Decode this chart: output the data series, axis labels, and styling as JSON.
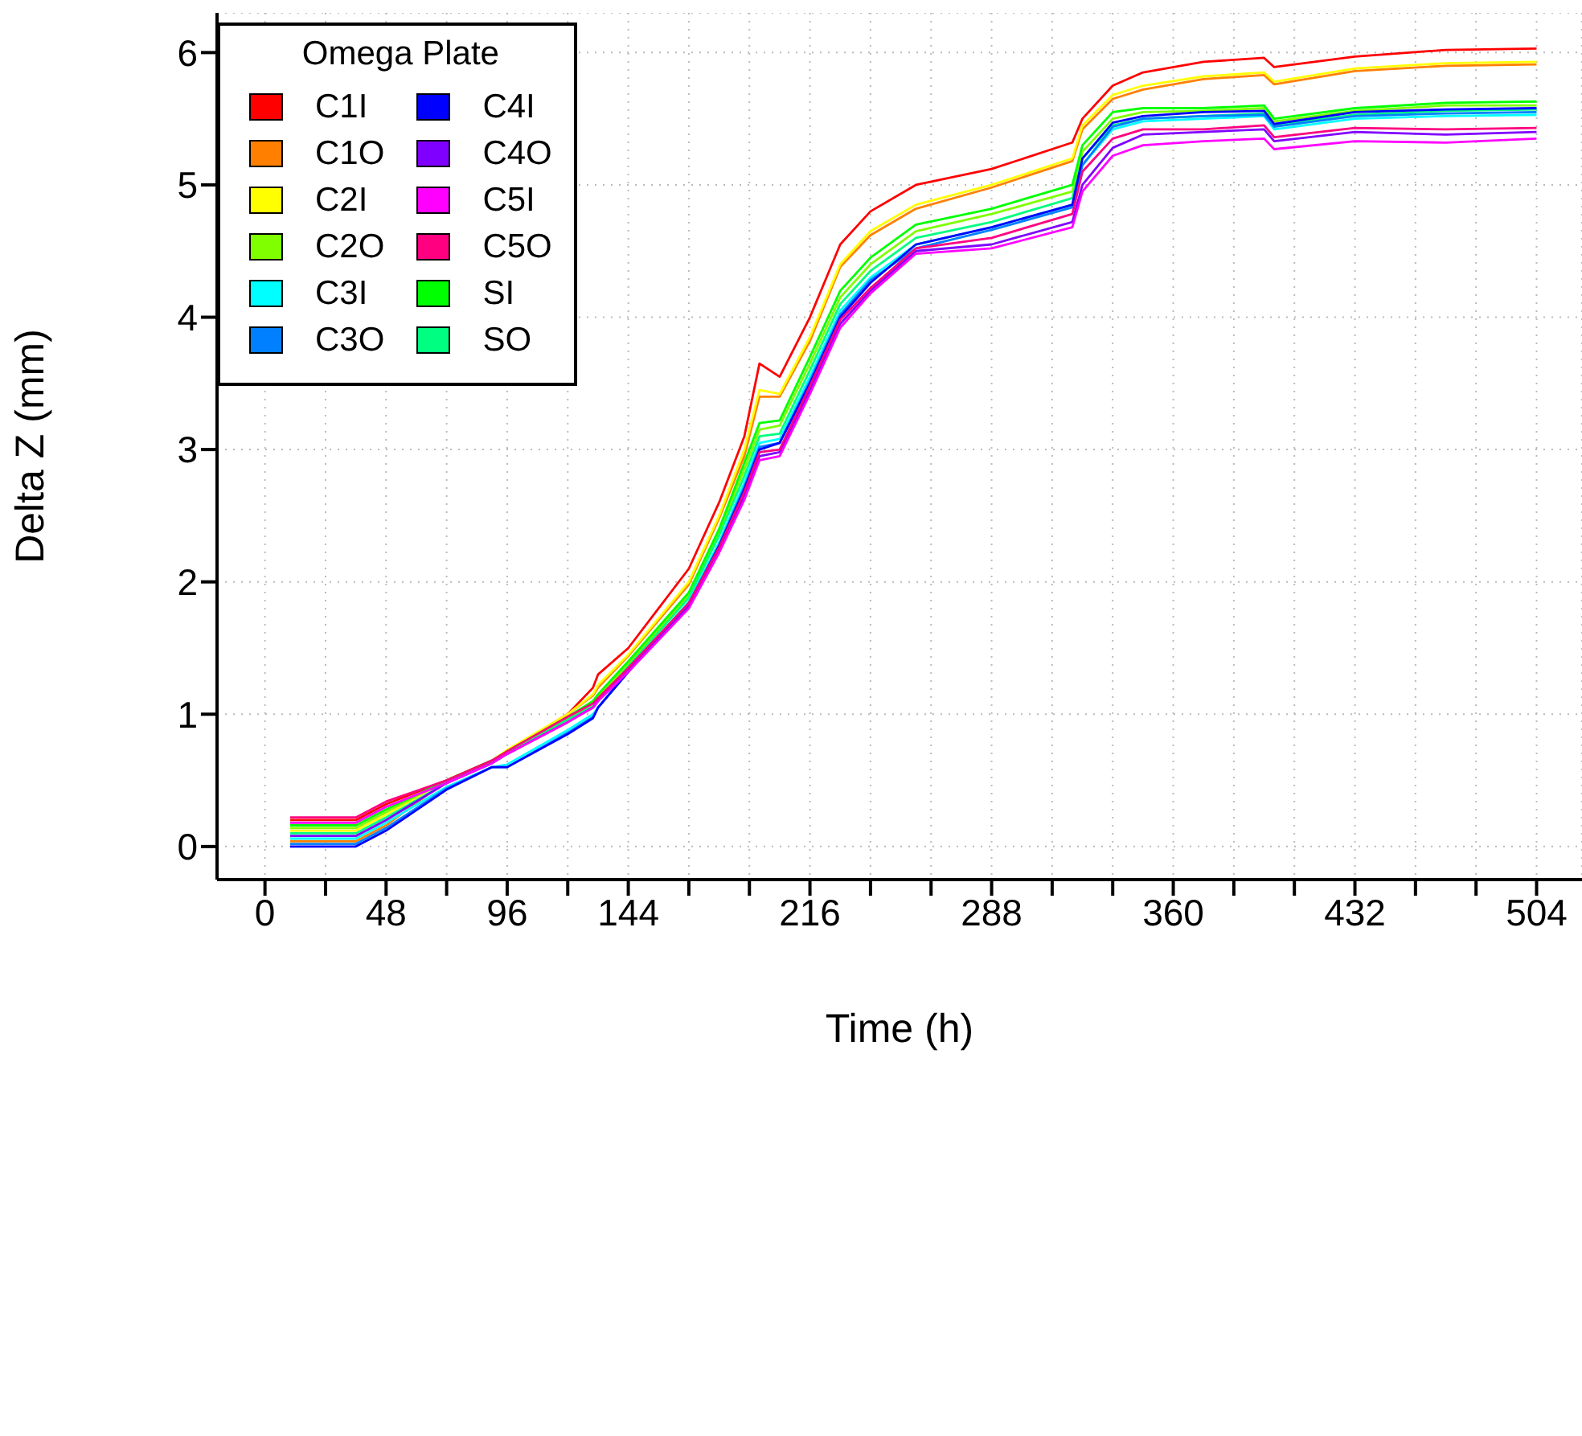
{
  "chart_data": {
    "type": "line",
    "xlabel": "Time (h)",
    "ylabel": "Delta Z (mm)",
    "legend_title": "Omega Plate",
    "legend": "top left",
    "grid": true,
    "marker": "none",
    "line_style": "solid",
    "xlim": [
      -19,
      522
    ],
    "ylim": [
      -0.25,
      6.3
    ],
    "xticks": [
      0,
      {
        "value": 24,
        "label": null
      },
      48,
      {
        "value": 72,
        "label": null
      },
      96,
      {
        "value": 120,
        "label": null
      },
      144,
      {
        "value": 168,
        "label": null
      },
      {
        "value": 192,
        "label": null
      },
      216,
      {
        "value": 240,
        "label": null
      },
      {
        "value": 264,
        "label": null
      },
      288,
      {
        "value": 312,
        "label": null
      },
      {
        "value": 336,
        "label": null
      },
      360,
      {
        "value": 384,
        "label": null
      },
      {
        "value": 408,
        "label": null
      },
      432,
      {
        "value": 456,
        "label": null
      },
      {
        "value": 480,
        "label": null
      },
      504
    ],
    "yticks": [
      0,
      1,
      2,
      3,
      4,
      5,
      6
    ],
    "x": [
      10,
      12,
      24,
      36,
      48,
      72,
      90,
      96,
      120,
      130,
      132,
      144,
      168,
      180,
      190,
      196,
      204,
      216,
      228,
      240,
      258,
      288,
      320,
      324,
      336,
      348,
      372,
      396,
      400,
      432,
      468,
      504
    ],
    "series": [
      {
        "name": "C1I",
        "color": "#ff0000",
        "values": [
          0.2,
          0.2,
          0.2,
          0.2,
          0.32,
          0.5,
          0.65,
          0.72,
          1.0,
          1.2,
          1.3,
          1.5,
          2.1,
          2.6,
          3.1,
          3.65,
          3.55,
          4.0,
          4.55,
          4.8,
          5.0,
          5.12,
          5.32,
          5.5,
          5.75,
          5.85,
          5.93,
          5.96,
          5.89,
          5.97,
          6.02,
          6.03
        ]
      },
      {
        "name": "C1O",
        "color": "#ff8000",
        "values": [
          0.04,
          0.04,
          0.04,
          0.04,
          0.16,
          0.5,
          0.65,
          0.72,
          1.0,
          1.14,
          1.2,
          1.44,
          1.98,
          2.48,
          2.95,
          3.4,
          3.4,
          3.82,
          4.38,
          4.62,
          4.82,
          4.98,
          5.18,
          5.42,
          5.65,
          5.72,
          5.8,
          5.83,
          5.76,
          5.86,
          5.9,
          5.91
        ]
      },
      {
        "name": "C2I",
        "color": "#ffff00",
        "values": [
          0.12,
          0.12,
          0.12,
          0.12,
          0.24,
          0.5,
          0.65,
          0.73,
          1.0,
          1.15,
          1.22,
          1.45,
          2.0,
          2.5,
          3.0,
          3.45,
          3.42,
          3.85,
          4.4,
          4.65,
          4.85,
          5.0,
          5.2,
          5.45,
          5.68,
          5.75,
          5.82,
          5.85,
          5.78,
          5.88,
          5.92,
          5.93
        ]
      },
      {
        "name": "C2O",
        "color": "#80ff00",
        "values": [
          0.14,
          0.14,
          0.14,
          0.14,
          0.26,
          0.5,
          0.64,
          0.72,
          0.97,
          1.08,
          1.13,
          1.38,
          1.9,
          2.38,
          2.85,
          3.15,
          3.18,
          3.65,
          4.15,
          4.4,
          4.65,
          4.78,
          4.95,
          5.25,
          5.5,
          5.55,
          5.56,
          5.58,
          5.48,
          5.56,
          5.6,
          5.6
        ]
      },
      {
        "name": "SI",
        "color": "#00ff00",
        "values": [
          0.16,
          0.16,
          0.16,
          0.16,
          0.28,
          0.5,
          0.65,
          0.72,
          0.98,
          1.1,
          1.15,
          1.4,
          1.92,
          2.4,
          2.9,
          3.2,
          3.22,
          3.7,
          4.2,
          4.45,
          4.7,
          4.82,
          5.0,
          5.3,
          5.55,
          5.58,
          5.58,
          5.6,
          5.5,
          5.58,
          5.62,
          5.63
        ]
      },
      {
        "name": "SO",
        "color": "#00ff80",
        "values": [
          0.1,
          0.1,
          0.1,
          0.1,
          0.22,
          0.48,
          0.63,
          0.7,
          0.96,
          1.06,
          1.1,
          1.36,
          1.88,
          2.35,
          2.8,
          3.1,
          3.12,
          3.6,
          4.1,
          4.35,
          4.6,
          4.72,
          4.9,
          5.2,
          5.45,
          5.5,
          5.52,
          5.54,
          5.45,
          5.53,
          5.56,
          5.57
        ]
      },
      {
        "name": "C3I",
        "color": "#00ffff",
        "values": [
          0.06,
          0.06,
          0.06,
          0.06,
          0.18,
          0.45,
          0.6,
          0.62,
          0.88,
          1.0,
          1.05,
          1.33,
          1.85,
          2.3,
          2.75,
          3.05,
          3.08,
          3.55,
          4.05,
          4.3,
          4.55,
          4.68,
          4.85,
          5.15,
          5.42,
          5.48,
          5.5,
          5.52,
          5.42,
          5.5,
          5.52,
          5.53
        ]
      },
      {
        "name": "C3O",
        "color": "#0080ff",
        "values": [
          0.02,
          0.02,
          0.02,
          0.02,
          0.14,
          0.44,
          0.6,
          0.6,
          0.86,
          0.98,
          1.05,
          1.32,
          1.84,
          2.28,
          2.72,
          3.02,
          3.05,
          3.52,
          4.02,
          4.28,
          4.52,
          4.66,
          4.83,
          5.15,
          5.44,
          5.5,
          5.52,
          5.53,
          5.44,
          5.52,
          5.54,
          5.55
        ]
      },
      {
        "name": "C4I",
        "color": "#0000ff",
        "values": [
          0,
          0,
          0,
          0,
          0.12,
          0.43,
          0.6,
          0.6,
          0.85,
          0.97,
          1.05,
          1.32,
          1.83,
          2.27,
          2.7,
          3.0,
          3.05,
          3.5,
          4.0,
          4.26,
          4.55,
          4.68,
          4.85,
          5.2,
          5.47,
          5.52,
          5.55,
          5.56,
          5.46,
          5.55,
          5.57,
          5.58
        ]
      },
      {
        "name": "C4O",
        "color": "#8000ff",
        "values": [
          0.08,
          0.08,
          0.08,
          0.08,
          0.2,
          0.48,
          0.63,
          0.7,
          0.94,
          1.05,
          1.1,
          1.33,
          1.82,
          2.25,
          2.65,
          2.95,
          2.98,
          3.45,
          3.95,
          4.2,
          4.5,
          4.55,
          4.72,
          5.0,
          5.28,
          5.38,
          5.4,
          5.42,
          5.33,
          5.4,
          5.38,
          5.4
        ]
      },
      {
        "name": "C5I",
        "color": "#ff00ff",
        "values": [
          0.18,
          0.18,
          0.18,
          0.18,
          0.3,
          0.48,
          0.63,
          0.7,
          0.94,
          1.05,
          1.1,
          1.32,
          1.8,
          2.22,
          2.62,
          2.92,
          2.95,
          3.42,
          3.92,
          4.18,
          4.48,
          4.52,
          4.68,
          4.95,
          5.22,
          5.3,
          5.33,
          5.35,
          5.27,
          5.33,
          5.32,
          5.35
        ]
      },
      {
        "name": "C5O",
        "color": "#ff0080",
        "values": [
          0.22,
          0.22,
          0.22,
          0.22,
          0.34,
          0.5,
          0.65,
          0.72,
          0.98,
          1.08,
          1.12,
          1.35,
          1.84,
          2.26,
          2.68,
          2.98,
          3.0,
          3.48,
          3.98,
          4.22,
          4.52,
          4.6,
          4.78,
          5.1,
          5.35,
          5.42,
          5.42,
          5.45,
          5.36,
          5.43,
          5.42,
          5.43
        ]
      }
    ]
  }
}
